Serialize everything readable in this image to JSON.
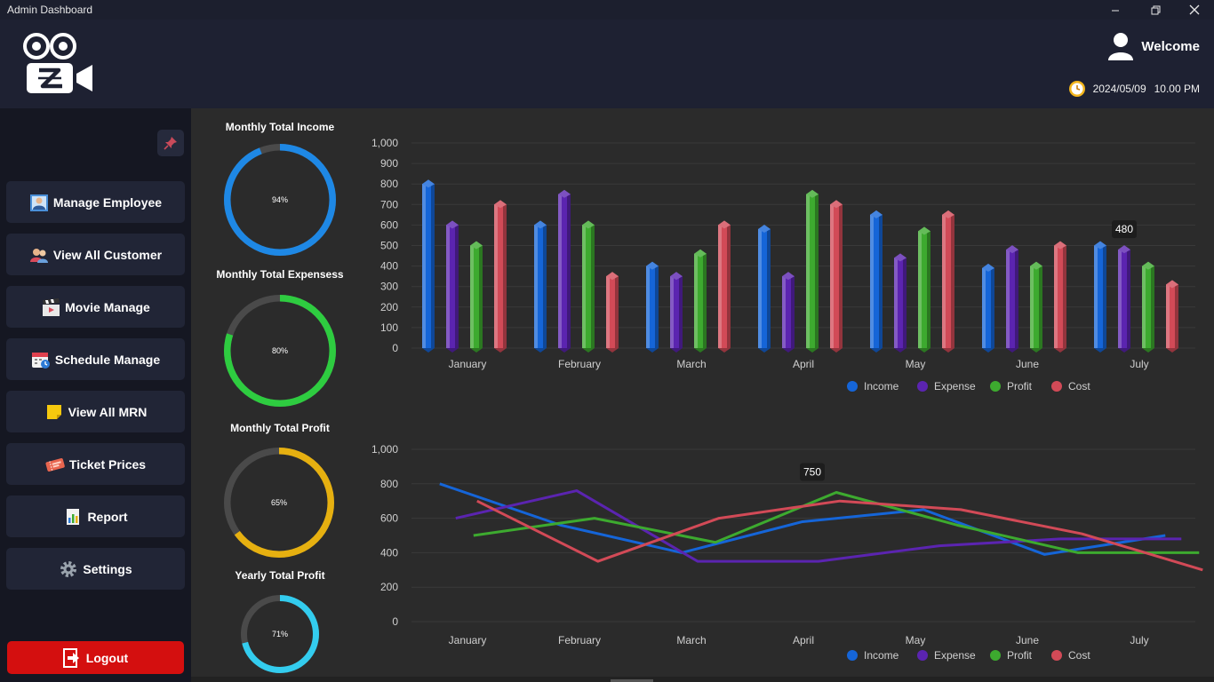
{
  "window": {
    "title": "Admin Dashboard",
    "controls": [
      "minimize",
      "restore",
      "close"
    ]
  },
  "header": {
    "welcome": "Welcome",
    "date": "2024/05/09",
    "time": "10.00 PM"
  },
  "sidebar": {
    "items": [
      {
        "label": "Manage Employee",
        "icon": "employee-icon"
      },
      {
        "label": "View All Customer",
        "icon": "customer-icon"
      },
      {
        "label": "Movie Manage",
        "icon": "clapperboard-icon"
      },
      {
        "label": "Schedule Manage",
        "icon": "calendar-icon"
      },
      {
        "label": "View All MRN",
        "icon": "sticky-note-icon"
      },
      {
        "label": "Ticket Prices",
        "icon": "ticket-icon"
      },
      {
        "label": "Report",
        "icon": "report-icon"
      },
      {
        "label": "Settings",
        "icon": "gear-icon"
      }
    ],
    "logout": "Logout"
  },
  "gauges": [
    {
      "title": "Monthly Total Income",
      "label": "94%",
      "value": 0.94,
      "color": "#1e88e5"
    },
    {
      "title": "Monthly Total Expensess",
      "label": "80%",
      "value": 0.8,
      "color": "#2ecc40"
    },
    {
      "title": "Monthly Total Profit",
      "label": "65%",
      "value": 0.65,
      "color": "#e6b010"
    },
    {
      "title": "Yearly Total Profit",
      "label": "71%",
      "value": 0.71,
      "color": "#33ccee"
    }
  ],
  "chart_data": [
    {
      "type": "bar",
      "categories": [
        "January",
        "February",
        "March",
        "April",
        "May",
        "June",
        "July"
      ],
      "series": [
        {
          "name": "Income",
          "color": "#1565d8",
          "values": [
            800,
            600,
            400,
            580,
            650,
            390,
            500
          ]
        },
        {
          "name": "Expense",
          "color": "#5b24b0",
          "values": [
            600,
            750,
            350,
            350,
            440,
            480,
            480
          ]
        },
        {
          "name": "Profit",
          "color": "#3daa2f",
          "values": [
            500,
            600,
            460,
            750,
            570,
            400,
            400
          ]
        },
        {
          "name": "Cost",
          "color": "#d24a57",
          "values": [
            700,
            350,
            600,
            700,
            650,
            500,
            310
          ]
        }
      ],
      "ylim": [
        0,
        1000
      ],
      "yticks": [
        "0",
        "100",
        "200",
        "300",
        "400",
        "500",
        "600",
        "700",
        "800",
        "900",
        "1,000"
      ],
      "tooltip": "480",
      "legend": "bottom",
      "grid": true
    },
    {
      "type": "line",
      "categories": [
        "January",
        "February",
        "March",
        "April",
        "May",
        "June",
        "July"
      ],
      "series": [
        {
          "name": "Income",
          "color": "#1565d8",
          "values": [
            800,
            560,
            400,
            580,
            650,
            390,
            500
          ]
        },
        {
          "name": "Expense",
          "color": "#5b24b0",
          "values": [
            600,
            760,
            350,
            350,
            440,
            480,
            480
          ]
        },
        {
          "name": "Profit",
          "color": "#3daa2f",
          "values": [
            500,
            600,
            460,
            750,
            560,
            400,
            400
          ]
        },
        {
          "name": "Cost",
          "color": "#d24a57",
          "values": [
            700,
            350,
            600,
            700,
            650,
            510,
            300
          ]
        }
      ],
      "ylim": [
        0,
        1000
      ],
      "yticks": [
        "0",
        "200",
        "400",
        "600",
        "800",
        "1,000"
      ],
      "tooltip": "750",
      "legend": "bottom",
      "grid": true
    }
  ]
}
